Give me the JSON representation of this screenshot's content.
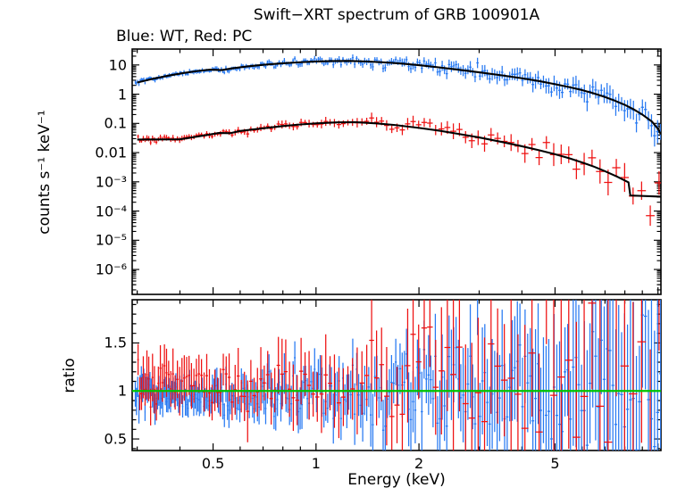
{
  "figure": {
    "title": "Swift−XRT spectrum of GRB 100901A",
    "subtitle": "Blue: WT, Red: PC",
    "xlabel": "Energy (keV)",
    "ylabel_top": "counts s⁻¹ keV⁻¹",
    "ylabel_bottom": "ratio",
    "background_color": "#ffffff",
    "axis_color": "#000000",
    "text_color": "#000000"
  },
  "colors": {
    "wt": "#2779f2",
    "pc": "#ee1111",
    "model": "#000000",
    "reference": "#00c400"
  },
  "chart_data": [
    {
      "type": "scatter",
      "panel": "spectrum",
      "title": "Swift−XRT spectrum of GRB 100901A",
      "subtitle": "Blue: WT, Red: PC",
      "xlabel": "Energy (keV)",
      "ylabel": "counts s⁻¹ keV⁻¹",
      "xscale": "log",
      "yscale": "log",
      "grid": false,
      "xlim": [
        0.29,
        10.2
      ],
      "ylim": [
        1.4e-07,
        35
      ],
      "xticks": [
        {
          "v": 0.5,
          "label": "0.5"
        },
        {
          "v": 1,
          "label": "1"
        },
        {
          "v": 2,
          "label": "2"
        },
        {
          "v": 5,
          "label": "5"
        }
      ],
      "xticks_minor": [
        0.3,
        0.4,
        0.6,
        0.7,
        0.8,
        0.9,
        3,
        4,
        6,
        7,
        8,
        9,
        10
      ],
      "yticks": [
        {
          "v": 10,
          "label": "10"
        },
        {
          "v": 1,
          "label": "1"
        },
        {
          "v": 0.1,
          "label": "0.1"
        },
        {
          "v": 0.01,
          "label": "0.01"
        },
        {
          "v": 0.001,
          "label": "10⁻³"
        },
        {
          "v": 0.0001,
          "label": "10⁻⁴"
        },
        {
          "v": 1e-05,
          "label": "10⁻⁵"
        },
        {
          "v": 1e-06,
          "label": "10⁻⁶"
        }
      ],
      "series": [
        {
          "name": "WT model (black line through blue data)",
          "mode": "WT",
          "role": "model",
          "color": "#000000",
          "points": [
            [
              0.3,
              2.5
            ],
            [
              0.335,
              3.4
            ],
            [
              0.37,
              4.3
            ],
            [
              0.41,
              5.3
            ],
            [
              0.45,
              6.2
            ],
            [
              0.49,
              6.9
            ],
            [
              0.53,
              6.7
            ],
            [
              0.57,
              7.7
            ],
            [
              0.63,
              8.9
            ],
            [
              0.7,
              10.1
            ],
            [
              0.8,
              11.4
            ],
            [
              0.9,
              12.4
            ],
            [
              1.0,
              13.1
            ],
            [
              1.12,
              13.6
            ],
            [
              1.25,
              13.7
            ],
            [
              1.4,
              13.2
            ],
            [
              1.6,
              12.2
            ],
            [
              1.8,
              11.0
            ],
            [
              2.0,
              9.8
            ],
            [
              2.3,
              8.2
            ],
            [
              2.6,
              6.9
            ],
            [
              3.0,
              5.6
            ],
            [
              3.5,
              4.4
            ],
            [
              4.0,
              3.5
            ],
            [
              4.5,
              2.8
            ],
            [
              5.0,
              2.2
            ],
            [
              5.5,
              1.75
            ],
            [
              6.0,
              1.38
            ],
            [
              6.5,
              1.06
            ],
            [
              7.0,
              0.8
            ],
            [
              7.5,
              0.59
            ],
            [
              8.0,
              0.43
            ],
            [
              8.5,
              0.3
            ],
            [
              9.0,
              0.2
            ],
            [
              9.6,
              0.115
            ],
            [
              10.0,
              0.065
            ],
            [
              10.2,
              0.042
            ]
          ]
        },
        {
          "name": "PC model (black line through red data)",
          "mode": "PC",
          "role": "model",
          "color": "#000000",
          "points": [
            [
              0.3,
              0.028
            ],
            [
              0.4,
              0.0285
            ],
            [
              0.46,
              0.037
            ],
            [
              0.52,
              0.047
            ],
            [
              0.56,
              0.046
            ],
            [
              0.6,
              0.055
            ],
            [
              0.7,
              0.068
            ],
            [
              0.8,
              0.081
            ],
            [
              0.9,
              0.092
            ],
            [
              1.0,
              0.1
            ],
            [
              1.15,
              0.108
            ],
            [
              1.3,
              0.11
            ],
            [
              1.5,
              0.1
            ],
            [
              1.7,
              0.088
            ],
            [
              2.0,
              0.07
            ],
            [
              2.3,
              0.056
            ],
            [
              2.6,
              0.044
            ],
            [
              3.0,
              0.033
            ],
            [
              3.5,
              0.023
            ],
            [
              4.0,
              0.0165
            ],
            [
              4.5,
              0.012
            ],
            [
              5.0,
              0.0088
            ],
            [
              5.5,
              0.0064
            ],
            [
              6.0,
              0.0046
            ],
            [
              6.5,
              0.0033
            ],
            [
              7.0,
              0.0023
            ],
            [
              7.6,
              0.0015
            ],
            [
              8.2,
              0.00096
            ],
            [
              8.3,
              0.00034
            ],
            [
              10.2,
              0.00031
            ]
          ]
        },
        {
          "name": "WT data (blue, Windowed Timing mode)",
          "mode": "WT",
          "role": "data",
          "color": "#2779f2",
          "noise": {
            "seed": 101,
            "emin": 0.295,
            "emax": 10.15,
            "step0": 0.0035,
            "step1": 0.009,
            "sig0": 0.11,
            "sig1": 0.62
          }
        },
        {
          "name": "PC data (red, Photon Counting mode)",
          "mode": "PC",
          "role": "data",
          "color": "#ee1111",
          "noise": {
            "seed": 202,
            "emin": 0.3,
            "emax": 10.0,
            "step0": 0.005,
            "step1": 0.026,
            "sig0": 0.15,
            "sig1": 0.85
          }
        }
      ]
    },
    {
      "type": "scatter",
      "panel": "ratio",
      "title": "",
      "xlabel": "Energy (keV)",
      "ylabel": "ratio",
      "xscale": "log",
      "yscale": "linear",
      "grid": false,
      "xlim": [
        0.29,
        10.2
      ],
      "ylim": [
        0.38,
        1.95
      ],
      "xticks": [
        {
          "v": 0.5,
          "label": "0.5"
        },
        {
          "v": 1,
          "label": "1"
        },
        {
          "v": 2,
          "label": "2"
        },
        {
          "v": 5,
          "label": "5"
        }
      ],
      "xticks_minor": [
        0.3,
        0.4,
        0.6,
        0.7,
        0.8,
        0.9,
        3,
        4,
        6,
        7,
        8,
        9,
        10
      ],
      "yticks": [
        {
          "v": 0.5,
          "label": "0.5"
        },
        {
          "v": 1,
          "label": "1"
        },
        {
          "v": 1.5,
          "label": "1.5"
        }
      ],
      "yticks_minor": [
        0.4,
        0.6,
        0.7,
        0.8,
        0.9,
        1.1,
        1.2,
        1.3,
        1.4,
        1.6,
        1.7,
        1.8,
        1.9
      ],
      "reference_line": {
        "y": 1,
        "color": "#00c400"
      },
      "series": [
        {
          "name": "WT ratio (blue)",
          "mode": "WT",
          "color": "#2779f2",
          "bias_low_e": -0.05,
          "err_scale": 0.9
        },
        {
          "name": "PC ratio (red)",
          "mode": "PC",
          "color": "#ee1111",
          "bias_low_e": 0.06,
          "err_scale": 1.0
        }
      ]
    }
  ]
}
